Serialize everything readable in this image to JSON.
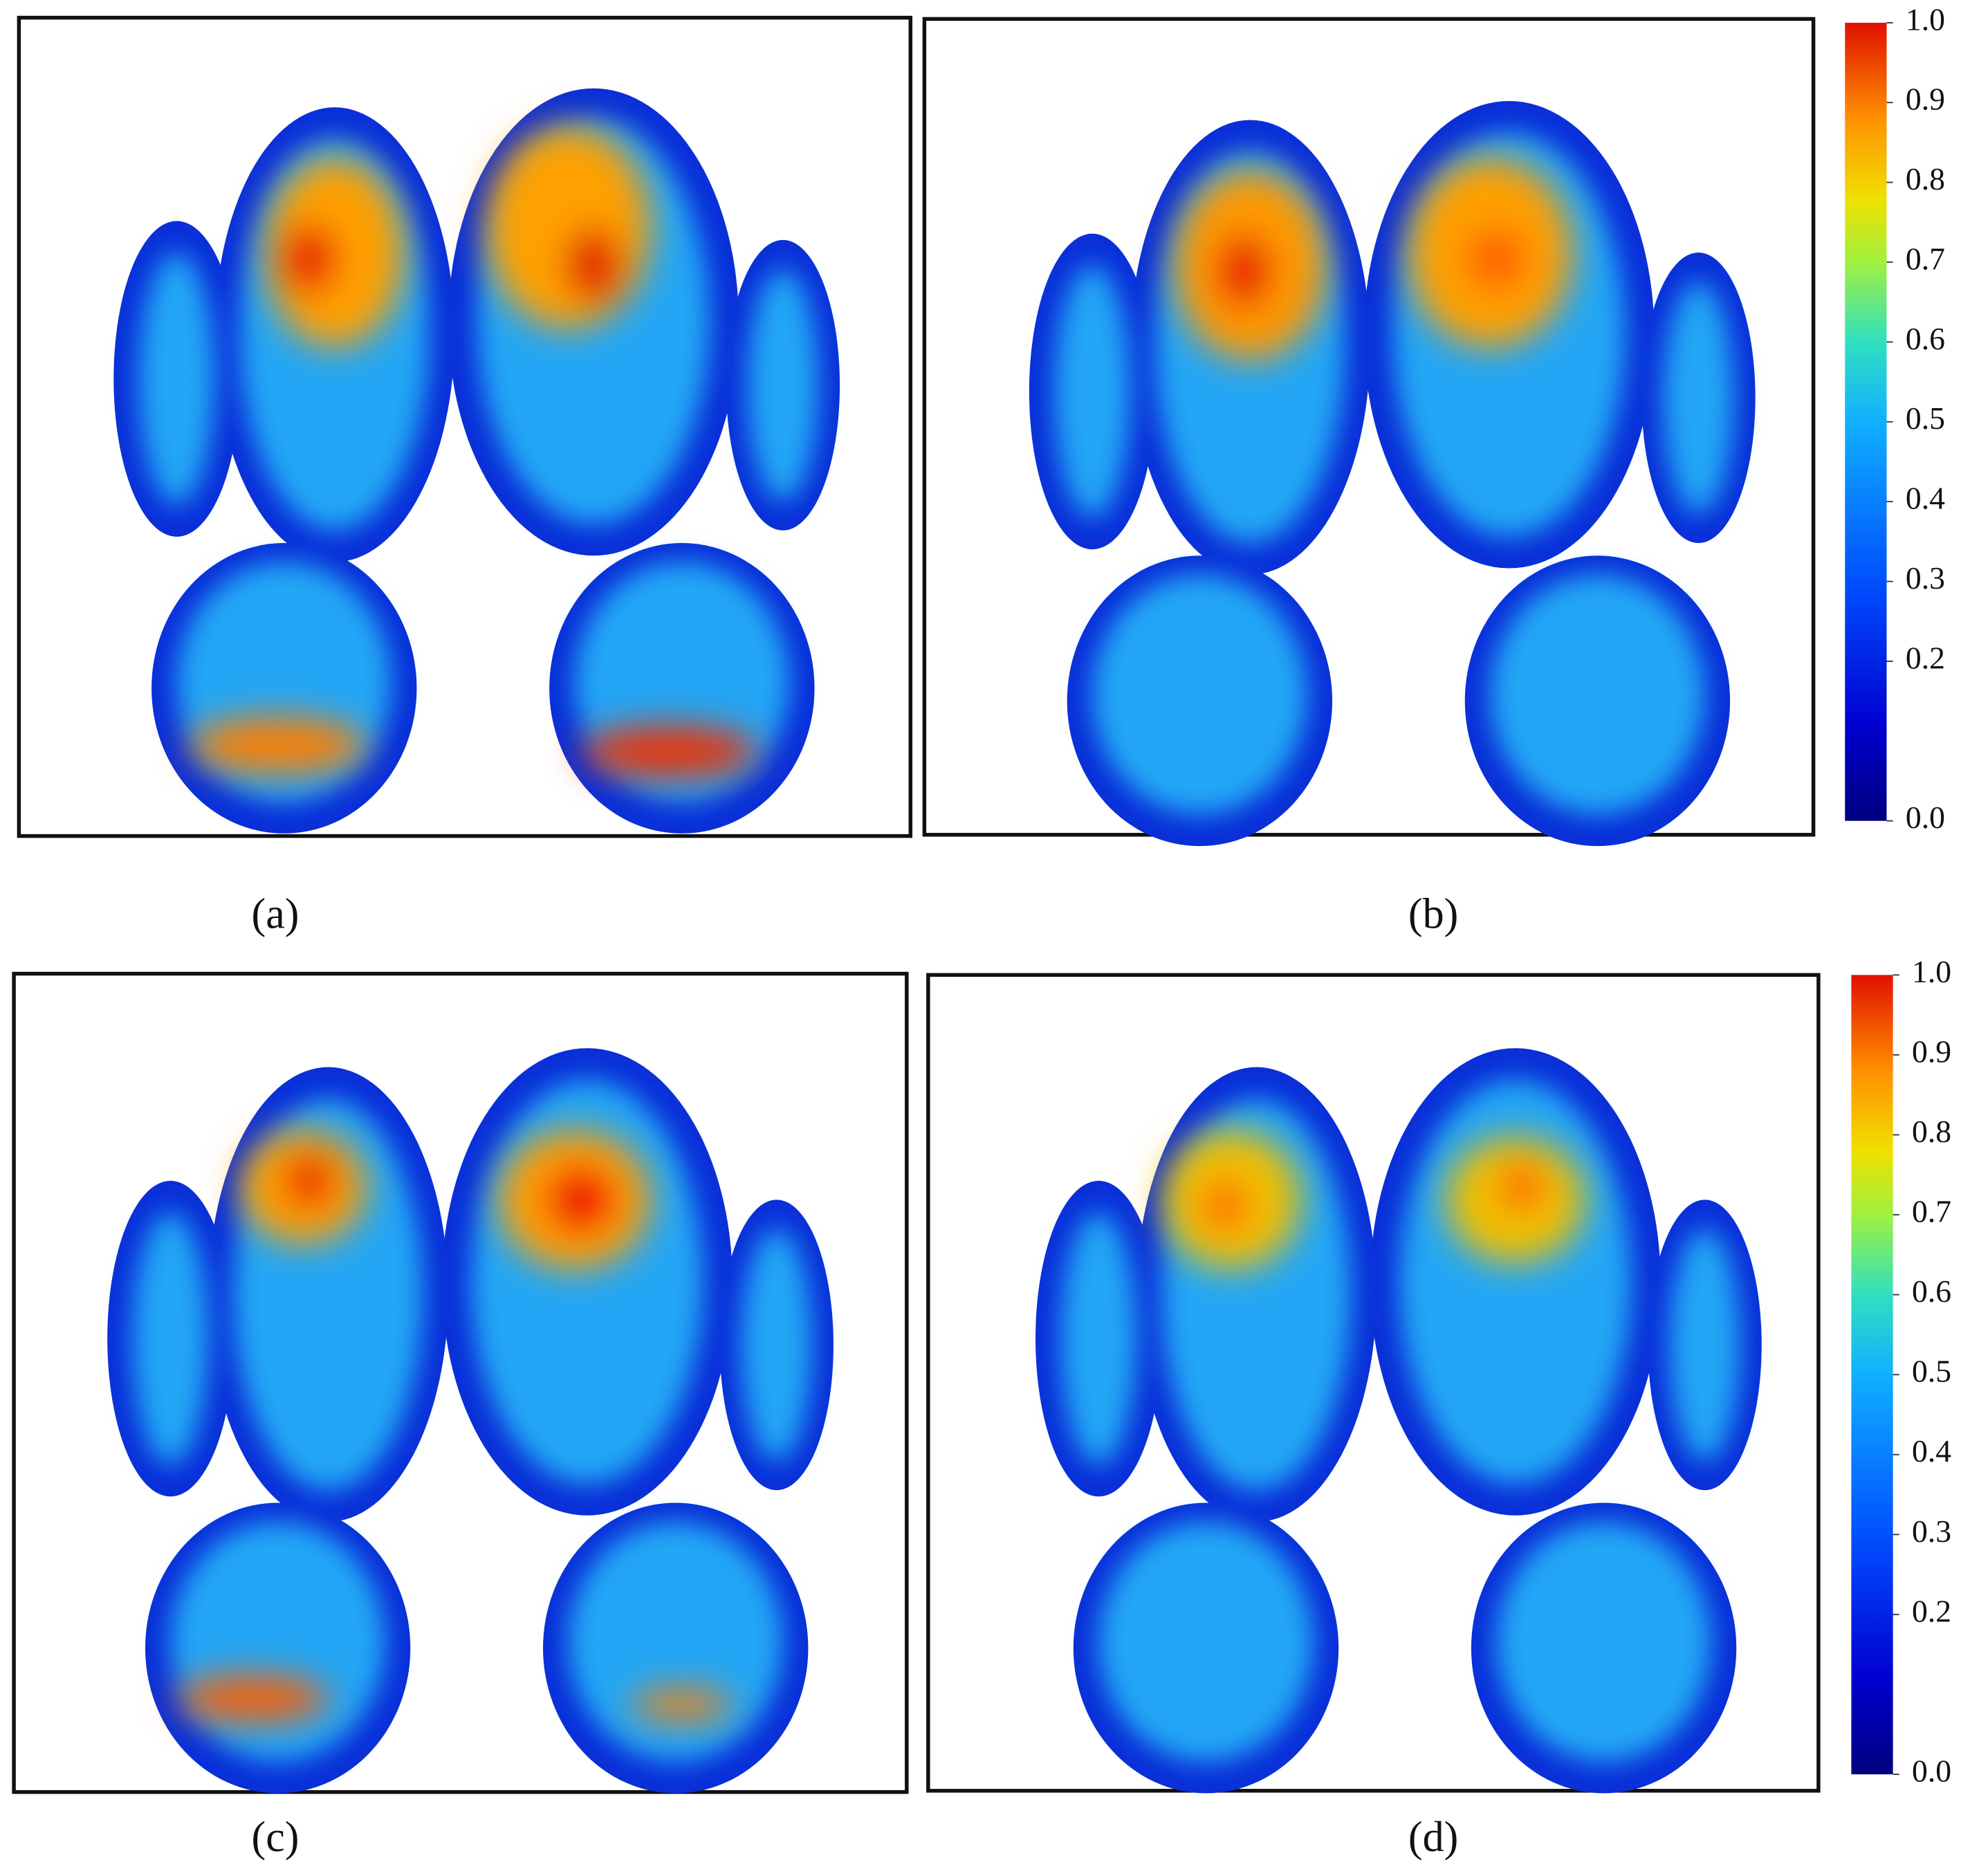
{
  "panels": [
    {
      "label": "(a)"
    },
    {
      "label": "(b)"
    },
    {
      "label": "(c)"
    },
    {
      "label": "(d)"
    }
  ],
  "colorbars": [
    {
      "type": "colorbar",
      "ylim": [
        0,
        1
      ],
      "yticks": [
        {
          "value": 1,
          "label": "1.0"
        },
        0.9,
        0.8,
        0.7,
        0.6,
        0.5,
        0.4,
        0.3,
        0.2,
        {
          "value": 0,
          "label": "0.0"
        }
      ]
    },
    {
      "type": "colorbar",
      "ylim": [
        0,
        1
      ],
      "yticks": [
        {
          "value": 1,
          "label": "1.0"
        },
        0.9,
        0.8,
        0.7,
        0.6,
        0.5,
        0.4,
        0.3,
        0.2,
        {
          "value": 0,
          "label": "0.0"
        }
      ]
    }
  ]
}
